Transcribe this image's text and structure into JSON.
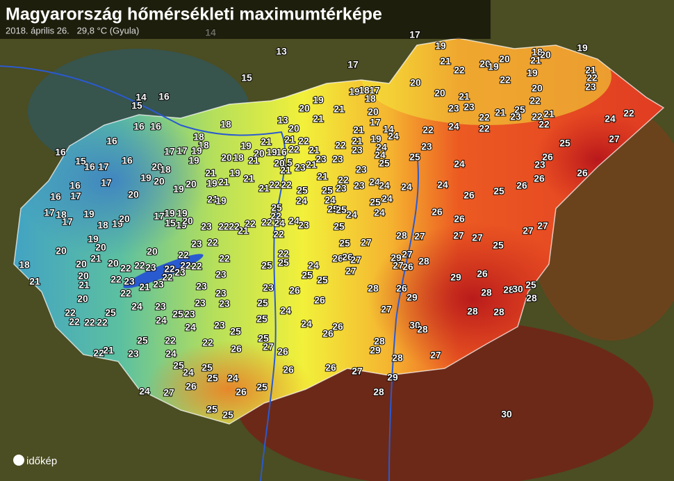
{
  "header": {
    "title": "Magyarország hőmérsékleti maximumtérképe",
    "subtitle": "2018. április 26.   29,8 °C (Gyula)"
  },
  "stations": {
    "temperatures": [
      14,
      13,
      15,
      17,
      19,
      17,
      21,
      22,
      20,
      19,
      20,
      18,
      20,
      19,
      21,
      19,
      21,
      22,
      23,
      22,
      20,
      20,
      20,
      21,
      23,
      23,
      22,
      25,
      23,
      21,
      22,
      22,
      22,
      22,
      21,
      24,
      22,
      27,
      25,
      24,
      22,
      23,
      25,
      19,
      18,
      17,
      18,
      19,
      21,
      20,
      21,
      13,
      20,
      20,
      17,
      21,
      14,
      24,
      22,
      21,
      23,
      19,
      24,
      24,
      25,
      23,
      21,
      22,
      22,
      21,
      23,
      23,
      21,
      23,
      15,
      20,
      21,
      16,
      19,
      21,
      20,
      19,
      20,
      18,
      21,
      19,
      21,
      21,
      22,
      22,
      25,
      21,
      25,
      24,
      22,
      23,
      23,
      24,
      24,
      24,
      24,
      24,
      25,
      24,
      25,
      25,
      24,
      24,
      24,
      24,
      25,
      22,
      24,
      23,
      22,
      22,
      22,
      21,
      18,
      18,
      18,
      19,
      17,
      17,
      19,
      20,
      18,
      16,
      16,
      15,
      16,
      17,
      17,
      16,
      17,
      16,
      17,
      18,
      17,
      19,
      14,
      15,
      16,
      16,
      16,
      16,
      19,
      20,
      19,
      20,
      21,
      19,
      21,
      21,
      19,
      20,
      17,
      19,
      19,
      15,
      19,
      20,
      18,
      19,
      20,
      23,
      22,
      22,
      19,
      20,
      20,
      18,
      21,
      20,
      20,
      21,
      20,
      21,
      20,
      20,
      22,
      23,
      22,
      22,
      23,
      21,
      23,
      22,
      22,
      23,
      22,
      22,
      23,
      22,
      22,
      22,
      25,
      22,
      25,
      23,
      23,
      23,
      23,
      23,
      23,
      23,
      25,
      24,
      23,
      24,
      24,
      25,
      22,
      22,
      22,
      22,
      22,
      22,
      21,
      23,
      25,
      22,
      24,
      22,
      23,
      25,
      25,
      25,
      24,
      26,
      25,
      24,
      25,
      26,
      24,
      26,
      26,
      27,
      26,
      26,
      27,
      27,
      25,
      25,
      25,
      27,
      26,
      26,
      25,
      24,
      25,
      25,
      24,
      26,
      25,
      26,
      26,
      24,
      27,
      25,
      25,
      26,
      27,
      28,
      29,
      28,
      29,
      28,
      27,
      27,
      28,
      26,
      29,
      30,
      28,
      29,
      27,
      26,
      27,
      28,
      28,
      27,
      26,
      26,
      27,
      27,
      25,
      27,
      27,
      26,
      25,
      26,
      23,
      26,
      26,
      26,
      26,
      29,
      28,
      30,
      25,
      28,
      28,
      28,
      28,
      30,
      29
    ]
  },
  "logo": "időkép"
}
